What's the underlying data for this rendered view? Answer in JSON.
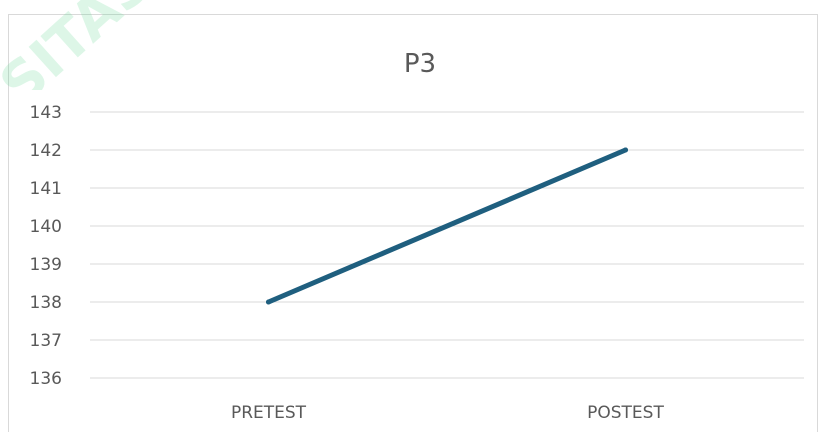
{
  "chart_data": {
    "type": "line",
    "title": "P3",
    "categories": [
      "PRETEST",
      "POSTEST"
    ],
    "series": [
      {
        "values": [
          138,
          142
        ]
      }
    ],
    "ylim": [
      136,
      143
    ],
    "y_ticks": [
      136,
      137,
      138,
      139,
      140,
      141,
      142,
      143
    ],
    "grid": true,
    "legend": "none",
    "line_color": "#1f5f7f",
    "grid_color": "#d9d9d9",
    "text_color": "#595959"
  },
  "watermark": {
    "text": "SITAS Y",
    "color": "#58d68d"
  }
}
